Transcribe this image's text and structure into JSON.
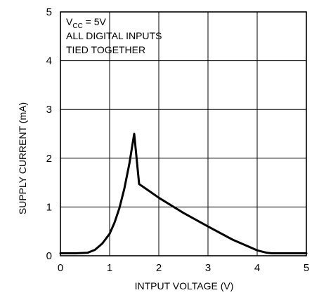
{
  "chart_data": {
    "type": "line",
    "xlabel": "INTPUT VOLTAGE (V)",
    "ylabel": "SUPPLY CURRENT (mA)",
    "xlim": [
      0,
      5
    ],
    "ylim": [
      0,
      5
    ],
    "xticks": [
      "0",
      "1",
      "2",
      "3",
      "4",
      "5"
    ],
    "yticks": [
      "0",
      "1",
      "2",
      "3",
      "4",
      "5"
    ],
    "grid": true,
    "annotation": {
      "vcc_prefix": "V",
      "vcc_sub": "CC",
      "vcc_suffix": " = 5V",
      "line2": "ALL DIGITAL INPUTS",
      "line3": "TIED TOGETHER"
    },
    "series": [
      {
        "x": [
          0,
          0.3,
          0.55,
          0.7,
          0.85,
          1.0,
          1.1,
          1.2,
          1.3,
          1.4,
          1.5,
          1.6,
          1.8,
          2.0,
          2.5,
          3.0,
          3.5,
          3.8,
          4.0,
          4.2,
          4.3,
          4.5,
          5.0
        ],
        "y": [
          0.05,
          0.05,
          0.06,
          0.12,
          0.25,
          0.45,
          0.68,
          0.98,
          1.38,
          1.88,
          2.5,
          1.47,
          1.33,
          1.19,
          0.88,
          0.6,
          0.33,
          0.2,
          0.11,
          0.06,
          0.05,
          0.05,
          0.05
        ]
      }
    ]
  }
}
